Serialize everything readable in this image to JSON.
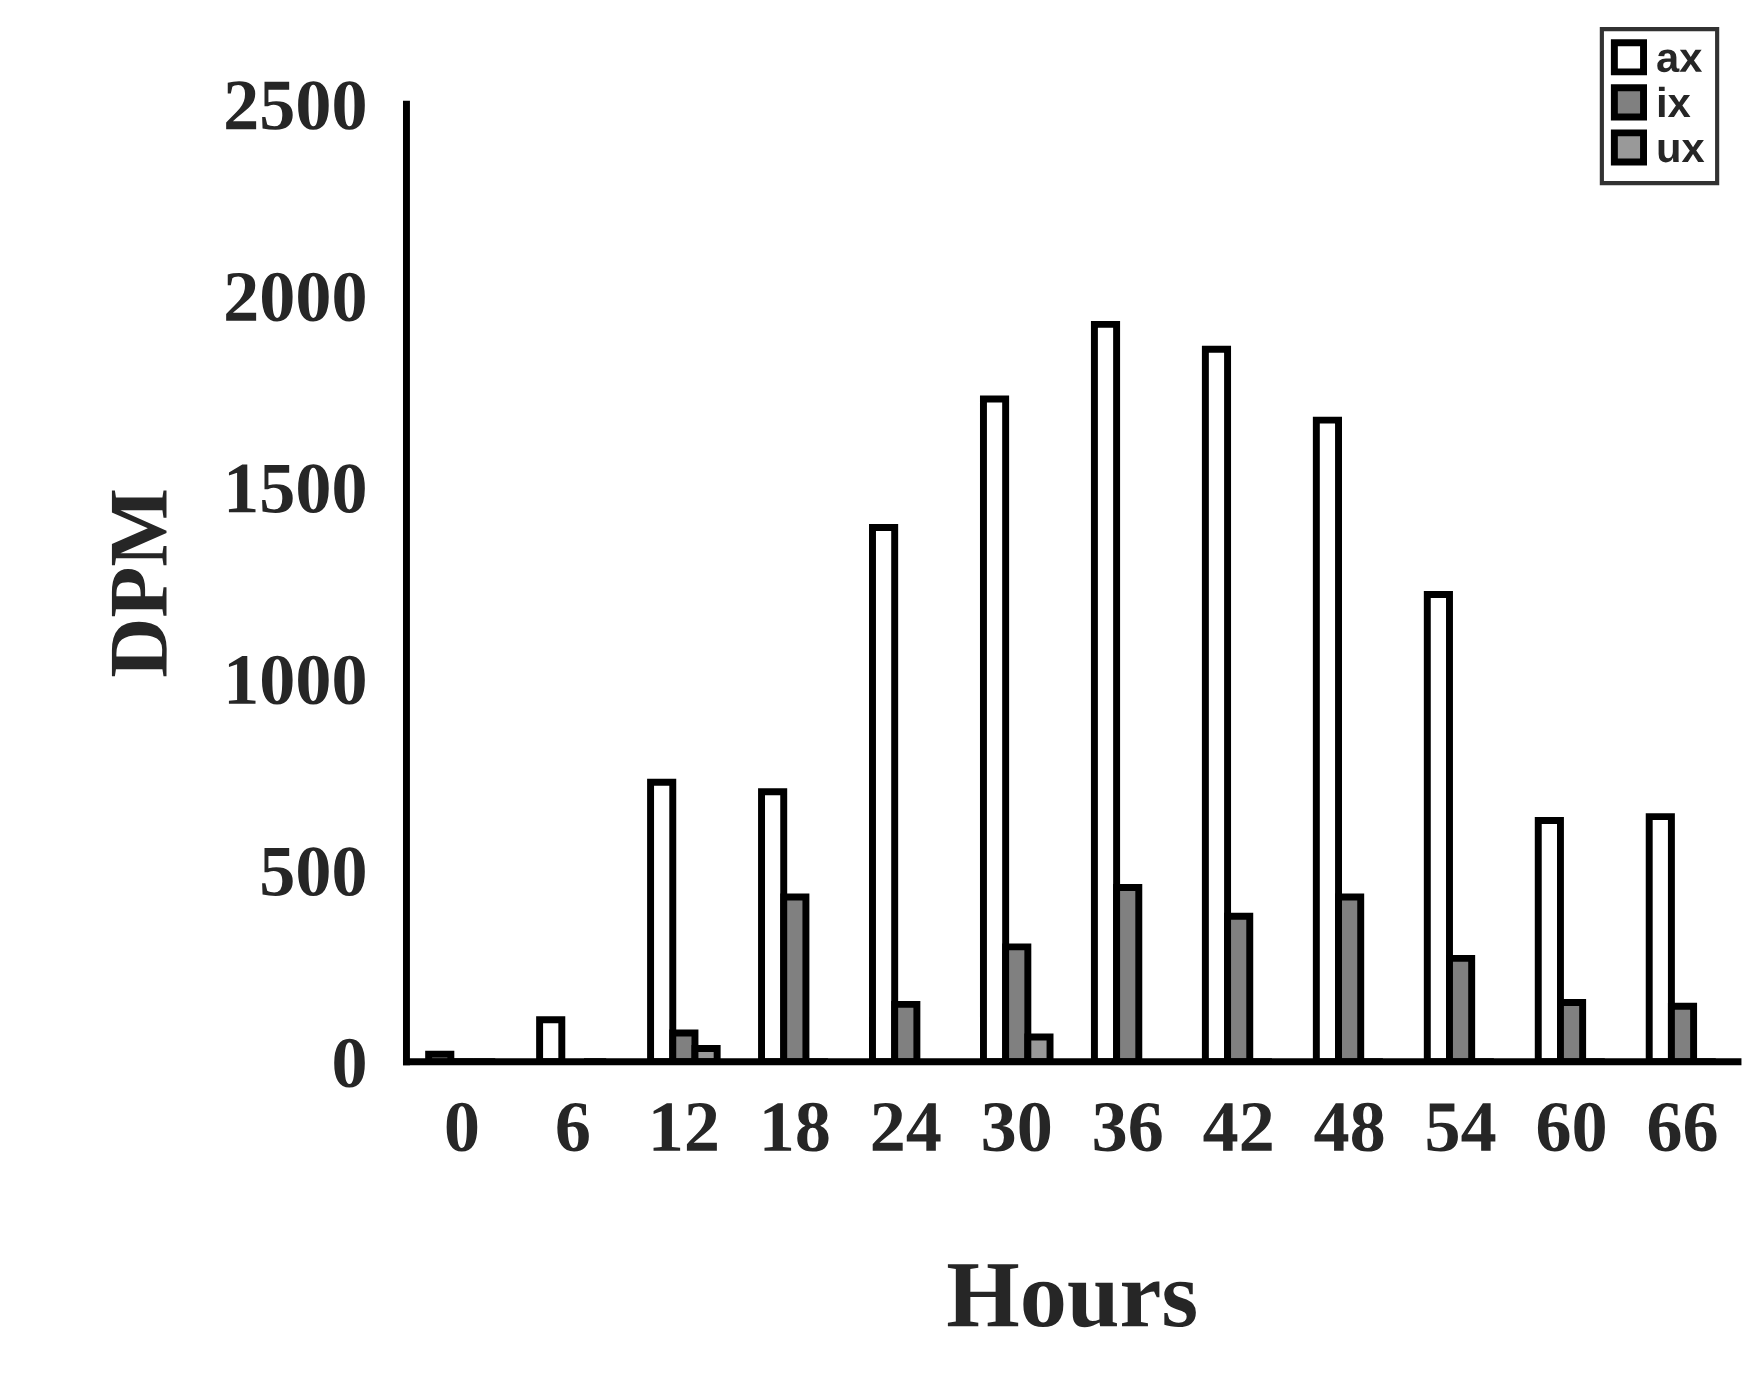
{
  "chart_data": {
    "type": "bar",
    "xlabel": "Hours",
    "ylabel": "DPM",
    "categories": [
      "0",
      "6",
      "12",
      "18",
      "24",
      "30",
      "36",
      "42",
      "48",
      "54",
      "60",
      "66"
    ],
    "series": [
      {
        "name": "ax",
        "color": "#ffffff",
        "values": [
          20,
          110,
          730,
          705,
          1395,
          1730,
          1925,
          1860,
          1675,
          1220,
          630,
          640
        ]
      },
      {
        "name": "ix",
        "color": "#808080",
        "values": [
          0,
          null,
          75,
          430,
          150,
          300,
          455,
          380,
          430,
          270,
          155,
          145
        ]
      },
      {
        "name": "ux",
        "color": "#999999",
        "values": [
          0,
          0,
          35,
          0,
          null,
          65,
          null,
          0,
          0,
          0,
          0,
          0
        ]
      }
    ],
    "ylim": [
      0,
      2500
    ],
    "yticks": [
      0,
      500,
      1000,
      1500,
      2000,
      2500
    ],
    "grid": false,
    "legend": "top right"
  }
}
